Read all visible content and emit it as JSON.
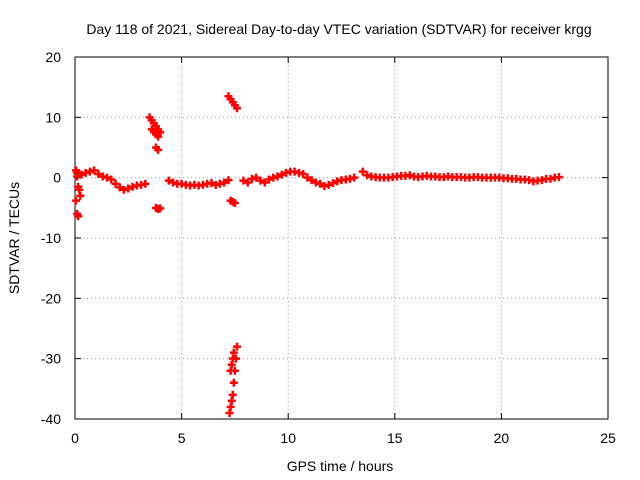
{
  "chart_data": {
    "type": "scatter",
    "title": "Day 118 of 2021, Sidereal Day-to-day VTEC variation (SDTVAR) for receiver krgg",
    "xlabel": "GPS time / hours",
    "ylabel": "SDTVAR / TECUs",
    "xlim": [
      0,
      25
    ],
    "ylim": [
      -40,
      20
    ],
    "xticks": [
      "0",
      "5",
      "10",
      "15",
      "20",
      "25"
    ],
    "yticks": [
      "20",
      "10",
      "0",
      "-10",
      "-20",
      "-30",
      "-40"
    ],
    "grid": true,
    "marker": "plus",
    "series_color": "#ff0000",
    "series": [
      {
        "name": "main",
        "x": [
          0.1,
          0.3,
          0.5,
          0.7,
          0.9,
          1.1,
          1.3,
          1.5,
          1.7,
          1.9,
          2.1,
          2.3,
          2.5,
          2.7,
          2.9,
          3.1,
          3.3,
          4.4,
          4.6,
          4.8,
          5.0,
          5.2,
          5.4,
          5.6,
          5.8,
          6.0,
          6.2,
          6.4,
          6.6,
          6.8,
          7.0,
          7.2,
          7.9,
          8.1,
          8.3,
          8.5,
          8.7,
          8.9,
          9.1,
          9.3,
          9.5,
          9.7,
          9.9,
          10.1,
          10.3,
          10.5,
          10.7,
          10.9,
          11.1,
          11.3,
          11.5,
          11.7,
          11.9,
          12.1,
          12.3,
          12.5,
          12.7,
          12.9,
          13.1,
          13.5,
          13.7,
          13.9,
          14.1,
          14.3,
          14.5,
          14.7,
          14.9,
          15.1,
          15.3,
          15.5,
          15.7,
          15.9,
          16.1,
          16.3,
          16.5,
          16.7,
          16.9,
          17.1,
          17.3,
          17.5,
          17.7,
          17.9,
          18.1,
          18.3,
          18.5,
          18.7,
          18.9,
          19.1,
          19.3,
          19.5,
          19.7,
          19.9,
          20.1,
          20.3,
          20.5,
          20.7,
          20.9,
          21.1,
          21.3,
          21.5,
          21.7,
          21.9,
          22.1,
          22.3,
          22.5,
          22.7
        ],
        "y": [
          0.2,
          0.5,
          0.8,
          1.0,
          1.2,
          0.6,
          0.2,
          0.0,
          -0.3,
          -1.0,
          -1.6,
          -2.0,
          -1.8,
          -1.5,
          -1.3,
          -1.2,
          -1.0,
          -0.5,
          -0.8,
          -1.0,
          -1.0,
          -1.2,
          -1.3,
          -1.2,
          -1.3,
          -1.2,
          -1.0,
          -0.9,
          -1.2,
          -1.0,
          -0.8,
          -0.4,
          -0.5,
          -0.8,
          -0.2,
          0.0,
          -0.5,
          -0.8,
          -0.3,
          0.0,
          0.2,
          0.5,
          0.8,
          1.0,
          1.0,
          0.8,
          0.6,
          0.0,
          -0.4,
          -0.8,
          -1.0,
          -1.4,
          -1.2,
          -0.9,
          -0.6,
          -0.4,
          -0.3,
          -0.2,
          0.0,
          1.0,
          0.4,
          0.2,
          0.1,
          0.0,
          0.0,
          0.0,
          0.1,
          0.2,
          0.3,
          0.3,
          0.4,
          0.2,
          0.1,
          0.2,
          0.3,
          0.2,
          0.2,
          0.1,
          0.1,
          0.2,
          0.1,
          0.1,
          0.1,
          0.0,
          0.0,
          0.1,
          0.1,
          0.0,
          0.0,
          0.0,
          0.0,
          0.0,
          -0.1,
          -0.1,
          -0.2,
          -0.2,
          -0.3,
          -0.3,
          -0.4,
          -0.6,
          -0.5,
          -0.4,
          -0.2,
          -0.2,
          0.0,
          0.1
        ]
      },
      {
        "name": "segment-start",
        "x": [
          0.05,
          0.1,
          0.15,
          0.2,
          0.25,
          0.05,
          0.1,
          0.15
        ],
        "y": [
          1.2,
          0.8,
          -1.5,
          -2.0,
          -3.0,
          -3.8,
          -6.0,
          -6.4
        ]
      },
      {
        "name": "segment-3.5h",
        "x": [
          3.5,
          3.6,
          3.7,
          3.8,
          3.9,
          4.0,
          3.6,
          3.7,
          3.8,
          3.9,
          3.8,
          3.9
        ],
        "y": [
          10.0,
          9.5,
          9.0,
          8.5,
          8.0,
          7.5,
          8.0,
          7.6,
          7.2,
          6.8,
          5.0,
          4.6
        ]
      },
      {
        "name": "segment-4h",
        "x": [
          3.8,
          3.9,
          4.0
        ],
        "y": [
          -5.0,
          -5.2,
          -5.1
        ]
      },
      {
        "name": "segment-7.3h-up",
        "x": [
          7.2,
          7.3,
          7.4,
          7.5,
          7.6
        ],
        "y": [
          13.5,
          13.0,
          12.5,
          12.0,
          11.5
        ]
      },
      {
        "name": "segment-7.3h-mid",
        "x": [
          7.3,
          7.4,
          7.5
        ],
        "y": [
          -3.8,
          -4.0,
          -4.2
        ]
      },
      {
        "name": "segment-7.3h-down",
        "x": [
          7.25,
          7.3,
          7.35,
          7.4,
          7.45,
          7.5,
          7.55,
          7.6,
          7.3,
          7.35,
          7.4,
          7.45
        ],
        "y": [
          -39.0,
          -38.0,
          -37.0,
          -36.0,
          -34.0,
          -32.0,
          -30.0,
          -28.0,
          -32.0,
          -31.0,
          -30.0,
          -29.0
        ]
      }
    ]
  }
}
